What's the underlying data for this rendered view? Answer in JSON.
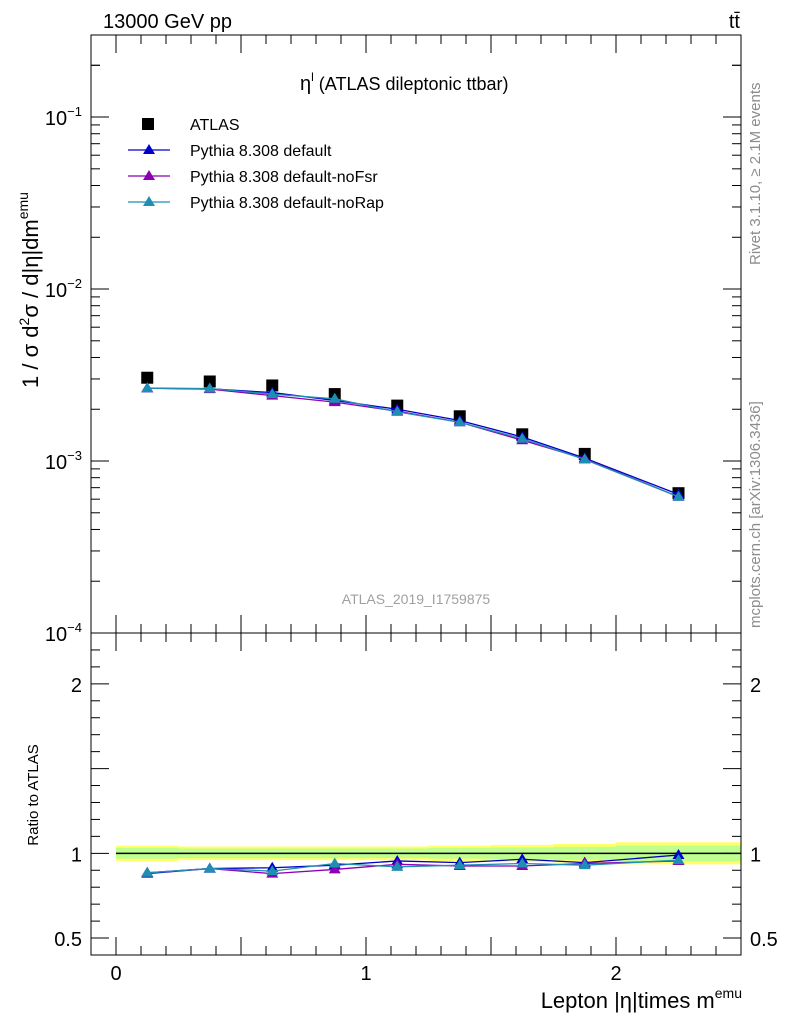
{
  "header": {
    "left": "13000 GeV pp",
    "right": "tt̄"
  },
  "side_labels": {
    "rivet": "Rivet 3.1.10, ≥ 2.1M events",
    "mcplots": "mcplots.cern.ch [arXiv:1306.3436]"
  },
  "chart_data": [
    {
      "type": "scatter",
      "title_base": "η",
      "title_sup": "l",
      "title_rest": " (ATLAS dileptonic ttbar)",
      "ylabel": "1 / σ d²σ / d|η|dm^emu",
      "ylabel_parts": {
        "a": "1 / σ d",
        "b": "2",
        "c": "σ / d|η|dm",
        "d": "emu"
      },
      "yscale": "log",
      "ylim": [
        0.0001,
        0.3
      ],
      "xlim": [
        -0.1,
        2.5
      ],
      "y_ticks": [
        {
          "base": "10",
          "exp": "−1"
        },
        {
          "base": "10",
          "exp": "−2"
        },
        {
          "base": "10",
          "exp": "−3"
        },
        {
          "base": "10",
          "exp": "−4"
        }
      ],
      "watermark": "ATLAS_2019_I1759875",
      "legend_position": "top-left",
      "legend": [
        {
          "name": "ATLAS",
          "marker": "square",
          "color": "#000000"
        },
        {
          "name": "Pythia 8.308 default",
          "marker": "triangle",
          "color": "#0000cc"
        },
        {
          "name": "Pythia 8.308 default-noFsr",
          "marker": "triangle",
          "color": "#8b00b3"
        },
        {
          "name": "Pythia 8.308 default-noRap",
          "marker": "triangle",
          "color": "#1e8fb3"
        }
      ],
      "x": [
        0.125,
        0.375,
        0.625,
        0.875,
        1.125,
        1.375,
        1.625,
        1.875,
        2.25
      ],
      "series": [
        {
          "name": "ATLAS",
          "values": [
            0.00305,
            0.0029,
            0.00275,
            0.00245,
            0.0021,
            0.00182,
            0.00143,
            0.0011,
            0.00065
          ]
        },
        {
          "name": "Pythia 8.308 default",
          "values": [
            0.00265,
            0.00263,
            0.0025,
            0.00225,
            0.002,
            0.00172,
            0.00138,
            0.00104,
            0.00064
          ]
        },
        {
          "name": "Pythia 8.308 default-noFsr",
          "values": [
            0.00265,
            0.00262,
            0.0024,
            0.0022,
            0.00195,
            0.00168,
            0.00132,
            0.00103,
            0.00062
          ]
        },
        {
          "name": "Pythia 8.308 default-noRap",
          "values": [
            0.00265,
            0.00264,
            0.00245,
            0.0023,
            0.00193,
            0.00168,
            0.00135,
            0.00102,
            0.00062
          ]
        }
      ]
    },
    {
      "type": "line",
      "ylabel": "Ratio to ATLAS",
      "xlabel_base": "Lepton |η|times m",
      "xlabel_sup": "emu",
      "ylim": [
        0.4,
        2.3
      ],
      "xlim": [
        -0.1,
        2.5
      ],
      "y_ticks": [
        {
          "v": 0.5,
          "label": "0.5"
        },
        {
          "v": 1,
          "label": "1"
        },
        {
          "v": 2,
          "label": "2"
        }
      ],
      "x_ticks": [
        {
          "v": 0,
          "label": "0"
        },
        {
          "v": 1,
          "label": "1"
        },
        {
          "v": 2,
          "label": "2"
        }
      ],
      "band_colors": {
        "stat": "#ffff66",
        "syst": "#bfff8f"
      },
      "band_edges": [
        0,
        0.25,
        0.5,
        0.75,
        1.0,
        1.25,
        1.5,
        1.75,
        2.0,
        2.5
      ],
      "band_halfwidth": [
        0.045,
        0.04,
        0.04,
        0.04,
        0.04,
        0.045,
        0.05,
        0.055,
        0.065
      ],
      "x": [
        0.125,
        0.375,
        0.625,
        0.875,
        1.125,
        1.375,
        1.625,
        1.875,
        2.25
      ],
      "series": [
        {
          "name": "Pythia 8.308 default",
          "values": [
            0.88,
            0.91,
            0.915,
            0.93,
            0.955,
            0.945,
            0.965,
            0.945,
            0.99
          ]
        },
        {
          "name": "Pythia 8.308 default-noFsr",
          "values": [
            0.885,
            0.91,
            0.88,
            0.905,
            0.935,
            0.925,
            0.925,
            0.94,
            0.955
          ]
        },
        {
          "name": "Pythia 8.308 default-noRap",
          "values": [
            0.885,
            0.91,
            0.895,
            0.94,
            0.92,
            0.93,
            0.94,
            0.93,
            0.96
          ]
        }
      ]
    }
  ]
}
